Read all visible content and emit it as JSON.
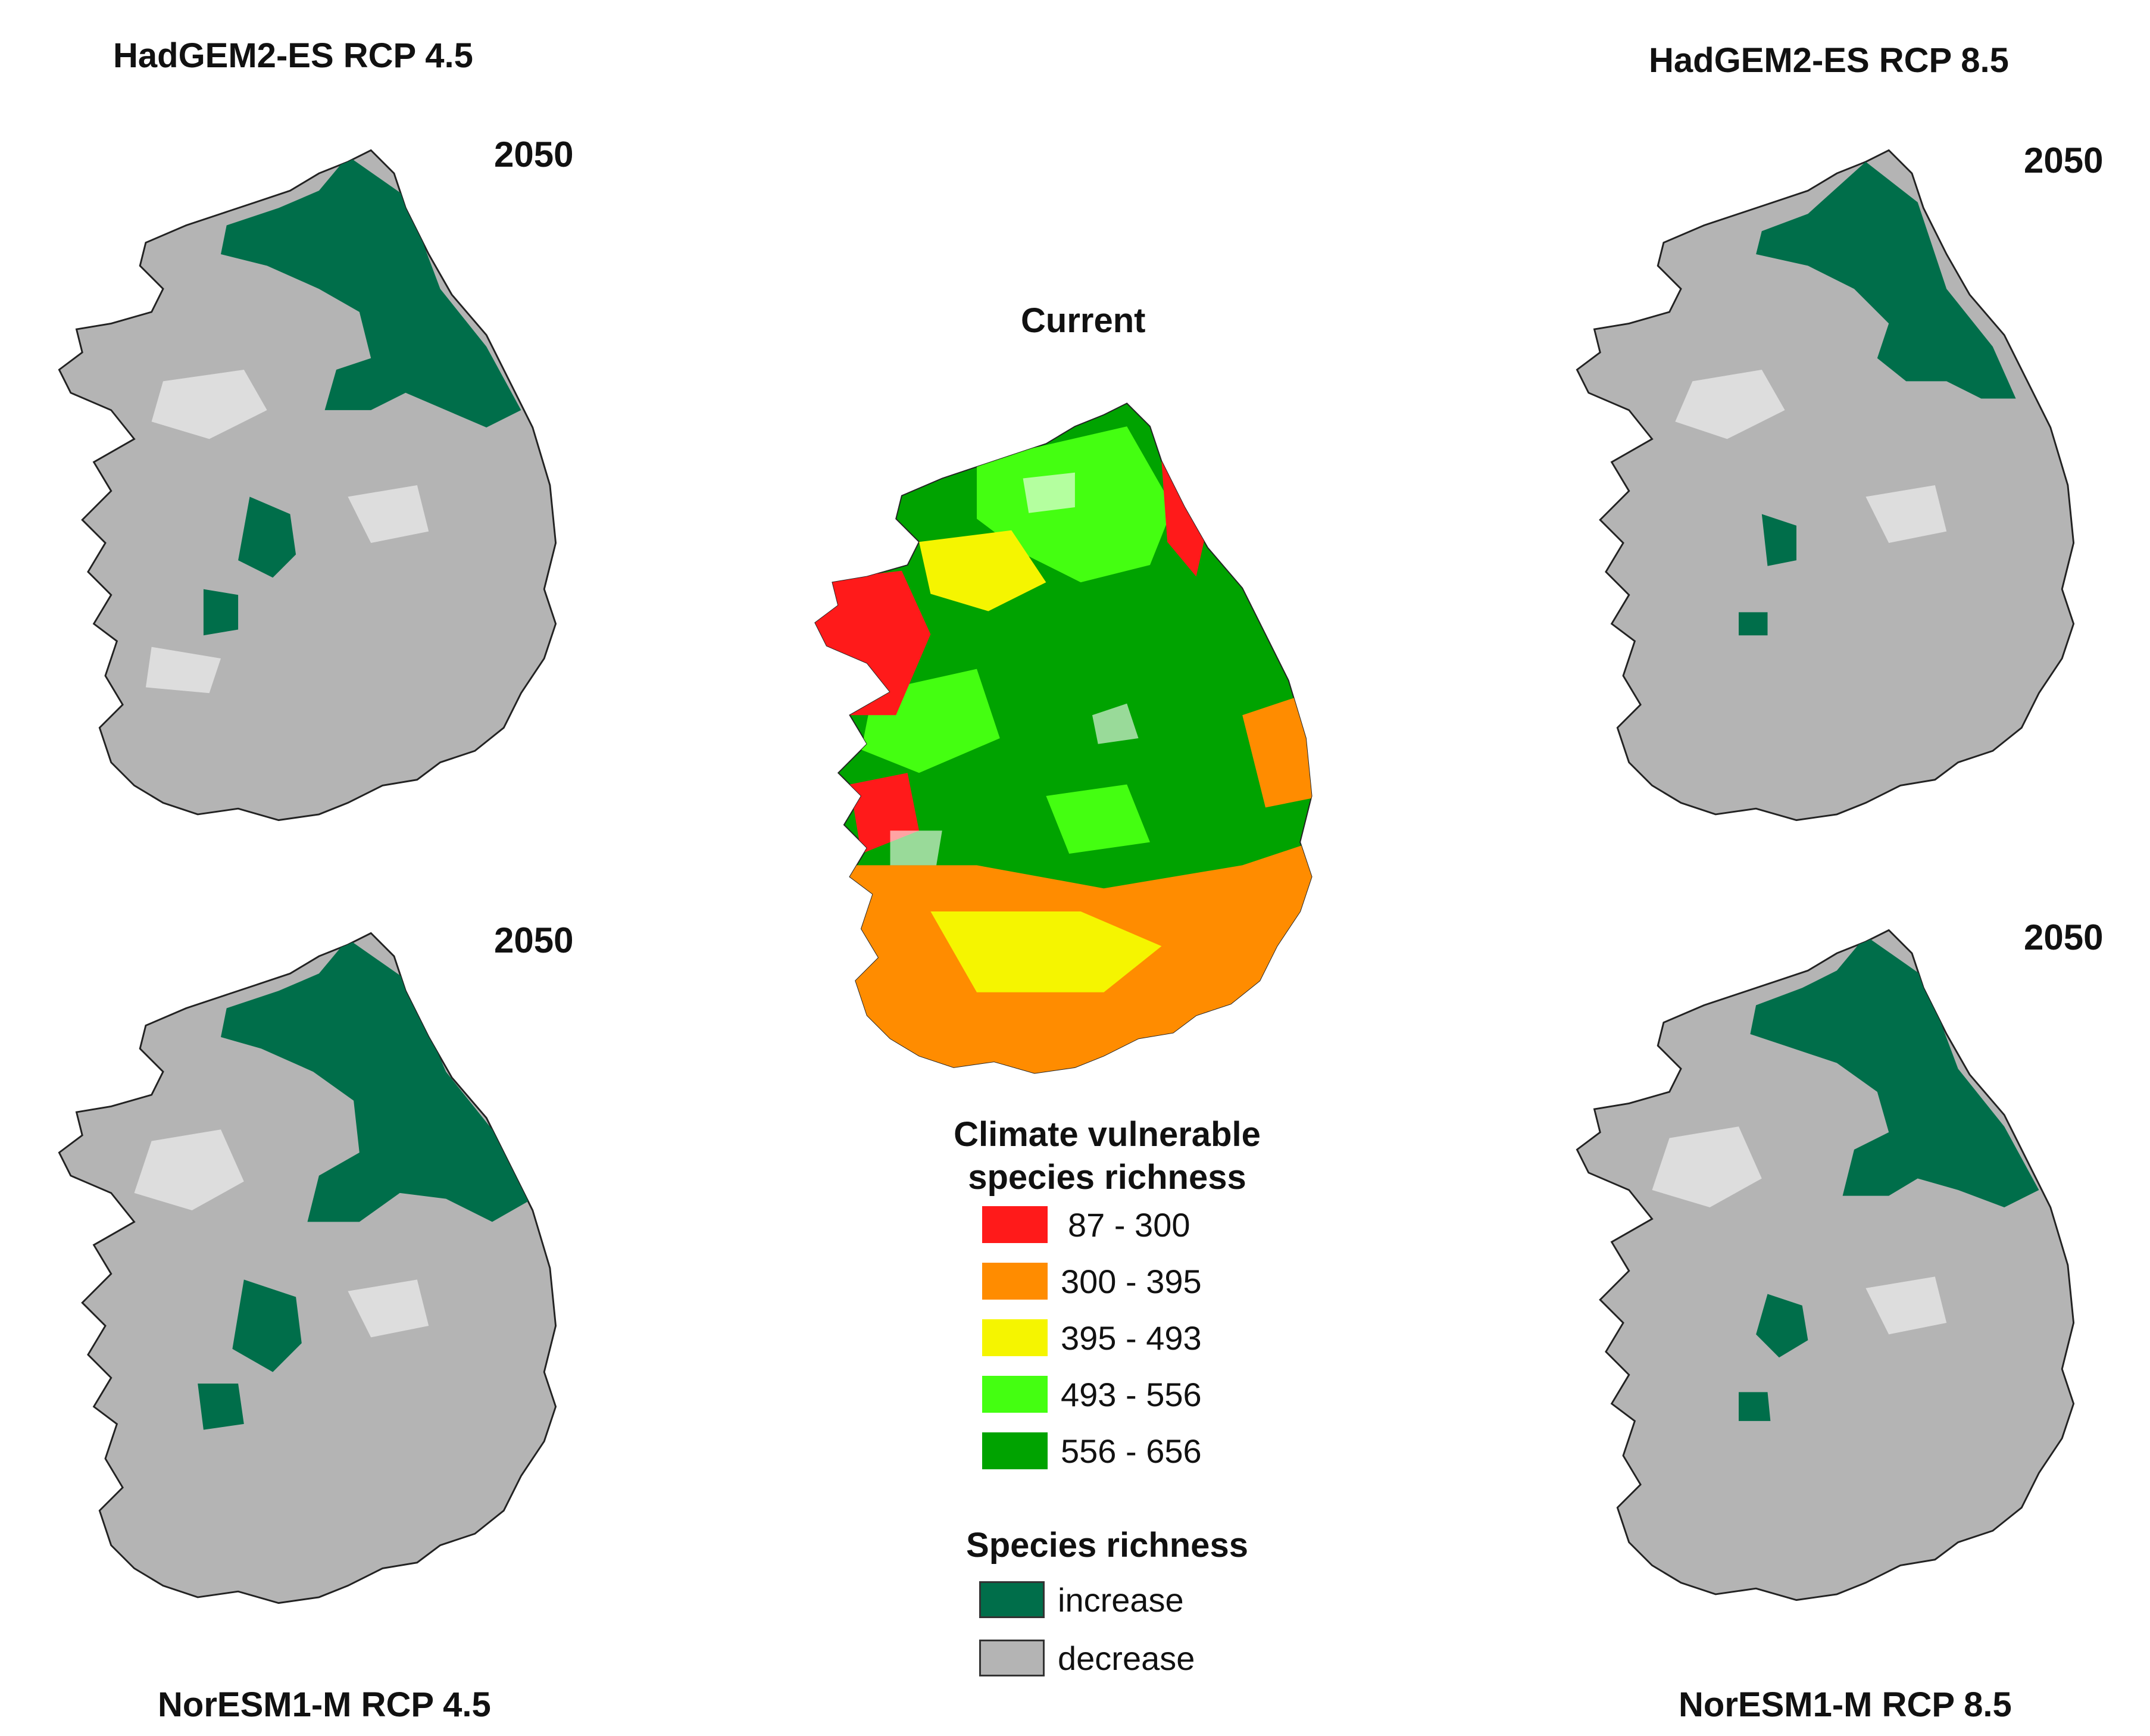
{
  "panels": {
    "top_left": {
      "title": "HadGEM2-ES RCP 4.5",
      "year": "2050"
    },
    "top_right": {
      "title": "HadGEM2-ES RCP 8.5",
      "year": "2050"
    },
    "bottom_left": {
      "title": "NorESM1-M RCP 4.5",
      "year": "2050"
    },
    "bottom_right": {
      "title": "NorESM1-M RCP 8.5",
      "year": "2050"
    },
    "center": {
      "title": "Current"
    }
  },
  "legend_richness": {
    "title_line1": "Climate vulnerable",
    "title_line2": "species richness",
    "classes": [
      {
        "label": "87 - 300",
        "color": "#ff1a1a"
      },
      {
        "label": "300 - 395",
        "color": "#ff8c00"
      },
      {
        "label": "395 - 493",
        "color": "#f5f500"
      },
      {
        "label": "493 - 556",
        "color": "#44ff11"
      },
      {
        "label": "556 - 656",
        "color": "#00a300"
      }
    ]
  },
  "legend_change": {
    "title": "Species richness",
    "classes": [
      {
        "label": "increase",
        "color": "#006e4a"
      },
      {
        "label": "decrease",
        "color": "#b4b4b4"
      }
    ]
  }
}
